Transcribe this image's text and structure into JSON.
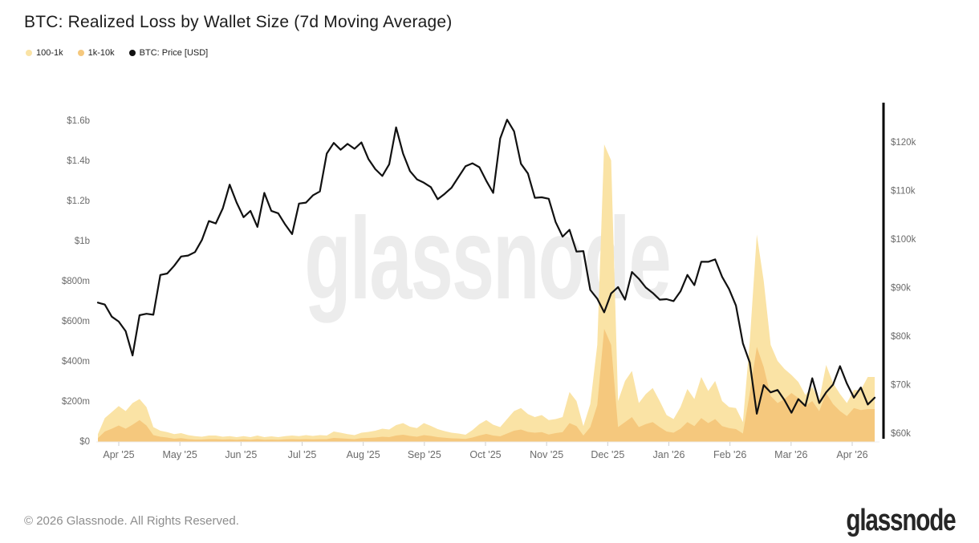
{
  "title": "BTC: Realized Loss by Wallet Size (7d Moving Average)",
  "watermark": "glassnode",
  "footer": {
    "copyright": "© 2026 Glassnode. All Rights Reserved.",
    "logo_text": "glassnode"
  },
  "chart_data": {
    "type": "area+line",
    "title": "BTC: Realized Loss by Wallet Size (7d Moving Average)",
    "legend_position": "top-left",
    "grid": false,
    "x_axis": {
      "labels": [
        "Apr '25",
        "May '25",
        "Jun '25",
        "Jul '25",
        "Aug '25",
        "Sep '25",
        "Oct '25",
        "Nov '25",
        "Dec '25",
        "Jan '26",
        "Feb '26",
        "Mar '26",
        "Apr '26"
      ]
    },
    "left_axis": {
      "unit": "USD realized loss",
      "tick_labels": [
        "$0",
        "$200m",
        "$400m",
        "$600m",
        "$800m",
        "$1b",
        "$1.2b",
        "$1.4b",
        "$1.6b"
      ],
      "tick_values_musd": [
        0,
        200,
        400,
        600,
        800,
        1000,
        1200,
        1400,
        1600
      ],
      "range_musd": [
        0,
        1600
      ]
    },
    "right_axis": {
      "unit": "BTC price USD",
      "tick_labels": [
        "$60k",
        "$70k",
        "$80k",
        "$90k",
        "$100k",
        "$110k",
        "$120k"
      ],
      "tick_values_kusd": [
        60,
        70,
        80,
        90,
        100,
        110,
        120
      ],
      "range_kusd": [
        60,
        120
      ]
    },
    "series": [
      {
        "name": "100-1k",
        "axis": "left",
        "unit": "million USD",
        "color": "#FAE3A5",
        "values": [
          35,
          115,
          145,
          175,
          150,
          190,
          210,
          170,
          70,
          52,
          45,
          35,
          40,
          30,
          25,
          22,
          28,
          28,
          22,
          25,
          20,
          25,
          20,
          28,
          20,
          24,
          20,
          25,
          28,
          25,
          30,
          26,
          30,
          28,
          48,
          42,
          35,
          30,
          42,
          46,
          52,
          62,
          58,
          80,
          90,
          72,
          65,
          90,
          76,
          60,
          50,
          42,
          38,
          32,
          55,
          85,
          105,
          82,
          70,
          110,
          150,
          165,
          135,
          120,
          130,
          105,
          110,
          120,
          245,
          200,
          75,
          185,
          480,
          1480,
          1400,
          200,
          300,
          350,
          190,
          235,
          265,
          200,
          130,
          110,
          170,
          260,
          210,
          320,
          250,
          300,
          200,
          170,
          165,
          95,
          500,
          1030,
          800,
          480,
          400,
          360,
          330,
          295,
          230,
          270,
          205,
          380,
          290,
          235,
          190,
          255,
          255,
          320,
          320
        ]
      },
      {
        "name": "1k-10k",
        "axis": "left",
        "unit": "million USD",
        "color": "#F5C87D",
        "values": [
          15,
          48,
          62,
          78,
          62,
          82,
          105,
          78,
          30,
          22,
          18,
          12,
          15,
          10,
          8,
          8,
          10,
          10,
          8,
          9,
          7,
          9,
          7,
          10,
          7,
          8,
          7,
          9,
          10,
          9,
          10,
          9,
          10,
          10,
          16,
          14,
          12,
          10,
          15,
          16,
          18,
          22,
          20,
          28,
          32,
          26,
          22,
          30,
          26,
          20,
          17,
          14,
          13,
          11,
          18,
          28,
          36,
          28,
          24,
          38,
          52,
          58,
          46,
          42,
          45,
          33,
          40,
          45,
          90,
          75,
          28,
          70,
          180,
          560,
          480,
          70,
          95,
          120,
          70,
          85,
          95,
          70,
          48,
          42,
          62,
          95,
          75,
          115,
          90,
          110,
          75,
          65,
          60,
          38,
          240,
          470,
          370,
          225,
          190,
          210,
          240,
          215,
          175,
          200,
          150,
          240,
          185,
          150,
          125,
          165,
          155,
          160,
          160
        ]
      },
      {
        "name": "BTC: Price [USD]",
        "axis": "right",
        "unit": "thousand USD",
        "color": "#111111",
        "values": [
          86.9,
          86.5,
          84.0,
          83.0,
          81.0,
          76.0,
          84.3,
          84.6,
          84.4,
          92.6,
          92.9,
          94.5,
          96.4,
          96.6,
          97.3,
          99.8,
          103.7,
          103.2,
          106.3,
          111.2,
          107.5,
          104.5,
          105.8,
          102.5,
          109.5,
          105.8,
          105.3,
          103.0,
          101.0,
          107.3,
          107.5,
          109.0,
          109.8,
          117.6,
          119.8,
          118.4,
          119.6,
          118.6,
          119.9,
          116.5,
          114.4,
          113.0,
          115.4,
          123.0,
          117.6,
          114.0,
          112.3,
          111.6,
          110.7,
          108.2,
          109.3,
          110.6,
          112.8,
          115.0,
          115.6,
          114.8,
          112.0,
          109.5,
          120.7,
          124.6,
          122.2,
          115.5,
          113.5,
          108.5,
          108.6,
          108.3,
          103.5,
          100.5,
          101.9,
          97.4,
          97.5,
          89.5,
          87.7,
          84.9,
          88.8,
          90.1,
          87.5,
          93.2,
          91.8,
          90.0,
          88.9,
          87.5,
          87.6,
          87.2,
          89.2,
          92.6,
          90.5,
          95.3,
          95.3,
          95.8,
          92.2,
          89.7,
          86.3,
          78.5,
          74.5,
          64.0,
          69.9,
          68.4,
          68.9,
          66.8,
          64.2,
          67.0,
          65.6,
          71.3,
          66.2,
          68.4,
          70.0,
          73.8,
          70.2,
          67.3,
          69.4,
          65.9,
          67.3
        ]
      }
    ]
  }
}
